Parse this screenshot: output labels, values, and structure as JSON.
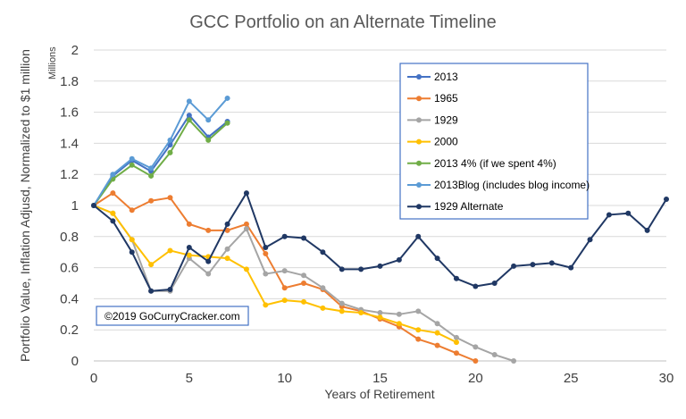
{
  "chart_data": {
    "type": "line",
    "title": "GCC Portfolio on an Alternate Timeline",
    "xlabel": "Years of Retirement",
    "ylabel": "Portfolio Value, Inflation Adjusd, Normalized to $1 million",
    "yunits": "Millions",
    "xlim": [
      0,
      30
    ],
    "ylim": [
      0,
      2
    ],
    "xticks": [
      0,
      5,
      10,
      15,
      20,
      25,
      30
    ],
    "yticks": [
      0,
      0.2,
      0.4,
      0.6,
      0.8,
      1,
      1.2,
      1.4,
      1.6,
      1.8,
      2
    ],
    "ytick_labels": [
      "0",
      "0.2",
      "0.4",
      "0.6",
      "0.8",
      "1",
      "1.2",
      "1.4",
      "1.6",
      "1.8",
      "2"
    ],
    "grid": "horizontal",
    "legend_position": "top-right",
    "series": [
      {
        "name": "2013",
        "color": "#4472C4",
        "x": [
          0,
          1,
          2,
          3,
          4,
          5,
          6,
          7
        ],
        "y": [
          1.0,
          1.19,
          1.29,
          1.22,
          1.39,
          1.58,
          1.44,
          1.54
        ]
      },
      {
        "name": "1965",
        "color": "#ED7D31",
        "x": [
          0,
          1,
          2,
          3,
          4,
          5,
          6,
          7,
          8,
          9,
          10,
          11,
          12,
          13,
          14,
          15,
          16,
          17,
          18,
          19,
          20
        ],
        "y": [
          1.0,
          1.08,
          0.97,
          1.03,
          1.05,
          0.88,
          0.84,
          0.84,
          0.88,
          0.69,
          0.47,
          0.5,
          0.46,
          0.35,
          0.32,
          0.27,
          0.22,
          0.14,
          0.1,
          0.05,
          0.0
        ]
      },
      {
        "name": "1929",
        "color": "#A5A5A5",
        "x": [
          0,
          1,
          2,
          3,
          4,
          5,
          6,
          7,
          8,
          9,
          10,
          11,
          12,
          13,
          14,
          15,
          16,
          17,
          18,
          19,
          20,
          21,
          22
        ],
        "y": [
          1.0,
          0.95,
          0.78,
          0.45,
          0.45,
          0.66,
          0.56,
          0.72,
          0.85,
          0.56,
          0.58,
          0.55,
          0.47,
          0.37,
          0.33,
          0.31,
          0.3,
          0.32,
          0.24,
          0.15,
          0.09,
          0.04,
          0.0
        ]
      },
      {
        "name": "2000",
        "color": "#FFC000",
        "x": [
          0,
          1,
          2,
          3,
          4,
          5,
          6,
          7,
          8,
          9,
          10,
          11,
          12,
          13,
          14,
          15,
          16,
          17,
          18,
          19
        ],
        "y": [
          1.0,
          0.95,
          0.78,
          0.62,
          0.71,
          0.68,
          0.67,
          0.66,
          0.59,
          0.36,
          0.39,
          0.38,
          0.34,
          0.32,
          0.31,
          0.28,
          0.24,
          0.2,
          0.18,
          0.12
        ]
      },
      {
        "name": "2013 4% (if we spent 4%)",
        "color": "#70AD47",
        "x": [
          0,
          1,
          2,
          3,
          4,
          5,
          6,
          7
        ],
        "y": [
          1.0,
          1.17,
          1.26,
          1.19,
          1.34,
          1.55,
          1.42,
          1.53
        ]
      },
      {
        "name": "2013Blog (includes blog income)",
        "color": "#5B9BD5",
        "x": [
          0,
          1,
          2,
          3,
          4,
          5,
          6,
          7
        ],
        "y": [
          1.0,
          1.2,
          1.3,
          1.24,
          1.42,
          1.67,
          1.55,
          1.69
        ]
      },
      {
        "name": "1929 Alternate",
        "color": "#203864",
        "x": [
          0,
          1,
          2,
          3,
          4,
          5,
          6,
          7,
          8,
          9,
          10,
          11,
          12,
          13,
          14,
          15,
          16,
          17,
          18,
          19,
          20,
          21,
          22,
          23,
          24,
          25,
          26,
          27,
          28,
          29,
          30
        ],
        "y": [
          1.0,
          0.9,
          0.7,
          0.45,
          0.46,
          0.73,
          0.64,
          0.88,
          1.08,
          0.73,
          0.8,
          0.79,
          0.7,
          0.59,
          0.59,
          0.61,
          0.65,
          0.8,
          0.66,
          0.53,
          0.48,
          0.5,
          0.61,
          0.62,
          0.63,
          0.6,
          0.78,
          0.94,
          0.95,
          0.84,
          1.04
        ]
      }
    ],
    "annotations": [
      "©2019 GoCurryCracker.com"
    ]
  }
}
